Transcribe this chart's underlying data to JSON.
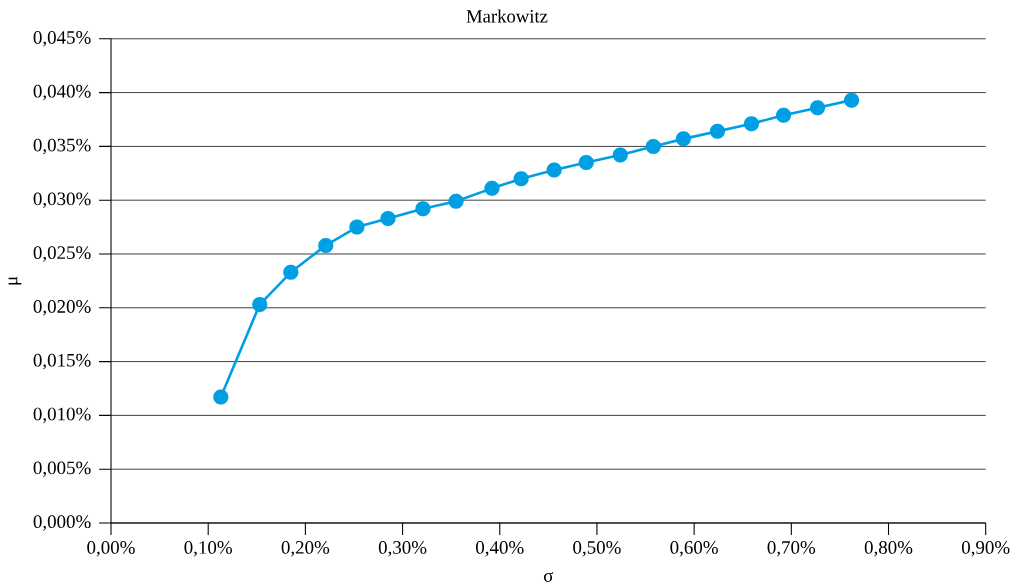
{
  "chart_data": {
    "type": "line",
    "title": "Markowitz",
    "xlabel": "σ",
    "ylabel": "μ",
    "x": [
      0.113,
      0.153,
      0.185,
      0.221,
      0.253,
      0.285,
      0.321,
      0.355,
      0.392,
      0.422,
      0.456,
      0.489,
      0.524,
      0.558,
      0.589,
      0.624,
      0.659,
      0.692,
      0.727,
      0.762
    ],
    "values": [
      0.0117,
      0.0203,
      0.0233,
      0.0258,
      0.0275,
      0.0283,
      0.0292,
      0.0299,
      0.0311,
      0.032,
      0.0328,
      0.0335,
      0.0342,
      0.035,
      0.0357,
      0.0364,
      0.0371,
      0.0379,
      0.0386,
      0.0393
    ],
    "color": "#009ee2",
    "marker": "circle",
    "line_style": "solid",
    "grid": "y",
    "xlim": [
      0,
      0.9
    ],
    "ylim": [
      0,
      0.045
    ],
    "xticks": [
      {
        "value": 0,
        "label": "0,00%"
      },
      {
        "value": 0.1,
        "label": "0,10%"
      },
      {
        "value": 0.2,
        "label": "0,20%"
      },
      {
        "value": 0.3,
        "label": "0,30%"
      },
      {
        "value": 0.4,
        "label": "0,40%"
      },
      {
        "value": 0.5,
        "label": "0,50%"
      },
      {
        "value": 0.6,
        "label": "0,60%"
      },
      {
        "value": 0.7,
        "label": "0,70%"
      },
      {
        "value": 0.8,
        "label": "0,80%"
      },
      {
        "value": 0.9,
        "label": "0,90%"
      }
    ],
    "yticks": [
      {
        "value": 0,
        "label": "0,000%"
      },
      {
        "value": 0.005,
        "label": "0,005%"
      },
      {
        "value": 0.01,
        "label": "0,010%"
      },
      {
        "value": 0.015,
        "label": "0,015%"
      },
      {
        "value": 0.02,
        "label": "0,020%"
      },
      {
        "value": 0.025,
        "label": "0,025%"
      },
      {
        "value": 0.03,
        "label": "0,030%"
      },
      {
        "value": 0.035,
        "label": "0,035%"
      },
      {
        "value": 0.04,
        "label": "0,040%"
      },
      {
        "value": 0.045,
        "label": "0,045%"
      }
    ]
  }
}
